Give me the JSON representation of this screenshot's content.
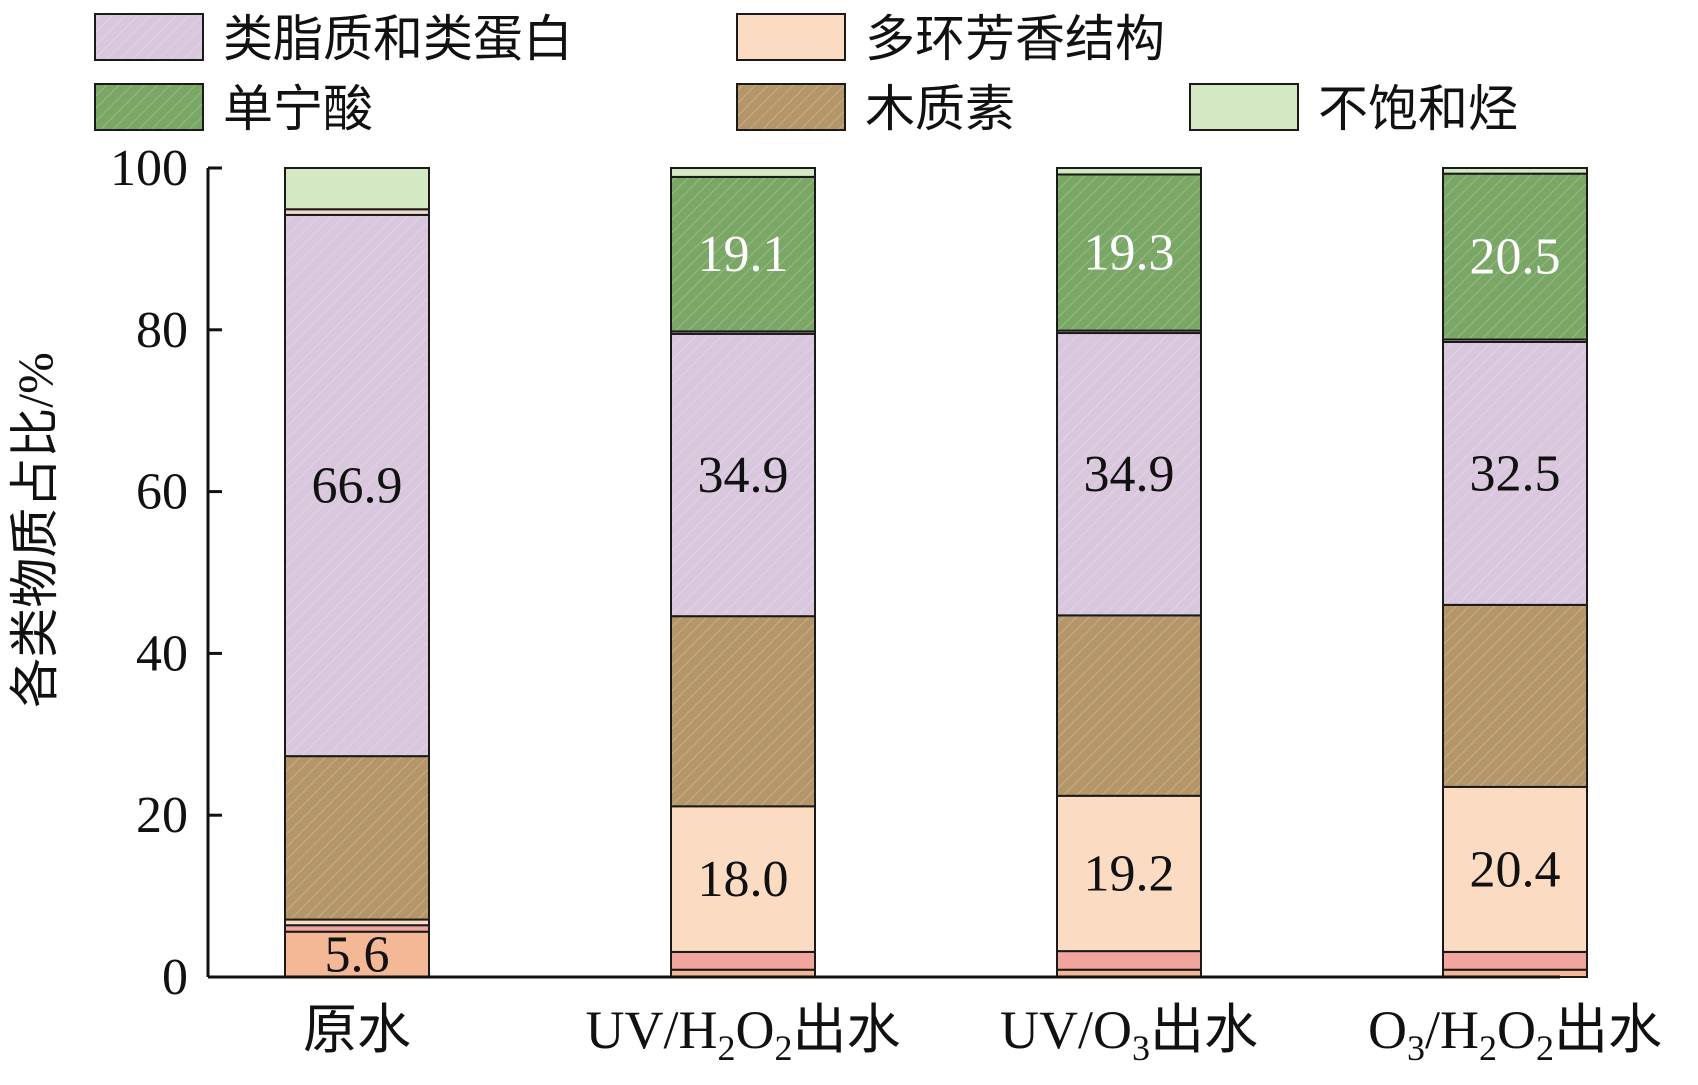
{
  "legend": {
    "items": [
      {
        "key": "lipid",
        "label": "类脂质和类蛋白",
        "color": "#d9c7dd",
        "hatch": true
      },
      {
        "key": "pah",
        "label": "多环芳香结构",
        "color": "#fbdcc3",
        "hatch": false
      },
      {
        "key": "tannin",
        "label": "单宁酸",
        "color": "#7aa765",
        "hatch": true
      },
      {
        "key": "lignin",
        "label": "木质素",
        "color": "#b59668",
        "hatch": true
      },
      {
        "key": "unsat",
        "label": "不饱和烃",
        "color": "#d3e8c3",
        "hatch": false
      }
    ]
  },
  "chart_data": {
    "type": "bar",
    "stacked": true,
    "ylabel": "各类物质占比/%",
    "ylim": [
      0,
      100
    ],
    "yticks": [
      "0",
      "20",
      "40",
      "60",
      "80",
      "100"
    ],
    "categories": [
      {
        "base": "原水",
        "sub": []
      },
      {
        "base": "出水",
        "sub": [
          [
            "UV/H",
            "n"
          ],
          [
            "2",
            "s"
          ],
          [
            "O",
            "n"
          ],
          [
            "2",
            "s"
          ]
        ]
      },
      {
        "base": "出水",
        "sub": [
          [
            "UV/O",
            "n"
          ],
          [
            "3",
            "s"
          ]
        ]
      },
      {
        "base": "出水",
        "sub": [
          [
            "O",
            "n"
          ],
          [
            "3",
            "s"
          ],
          [
            "/H",
            "n"
          ],
          [
            "2",
            "s"
          ],
          [
            "O",
            "n"
          ],
          [
            "2",
            "s"
          ]
        ]
      }
    ],
    "series": [
      {
        "key": "s1",
        "color": "#f4b896",
        "values": [
          5.6,
          0.9,
          0.9,
          0.9
        ]
      },
      {
        "key": "s2",
        "color": "#f2a49e",
        "values": [
          0.8,
          2.2,
          2.3,
          2.2
        ]
      },
      {
        "key": "pah",
        "color": "#fbdcc3",
        "values": [
          0.7,
          18.0,
          19.2,
          20.4
        ]
      },
      {
        "key": "lignin",
        "color": "#b59668",
        "values": [
          20.2,
          23.5,
          22.3,
          22.5
        ]
      },
      {
        "key": "lipid",
        "color": "#d9c7dd",
        "values": [
          66.9,
          34.9,
          34.9,
          32.5
        ]
      },
      {
        "key": "s6",
        "color": "#f2d6d0",
        "values": [
          0.7,
          0.3,
          0.3,
          0.3
        ]
      },
      {
        "key": "tannin",
        "color": "#7aa765",
        "values": [
          0.0,
          19.1,
          19.3,
          20.5
        ]
      },
      {
        "key": "unsat",
        "color": "#d3e8c3",
        "values": [
          5.1,
          1.1,
          0.8,
          0.7
        ]
      }
    ],
    "data_labels": [
      {
        "bar": 0,
        "series": "s1",
        "text": "5.6",
        "color": "#111111"
      },
      {
        "bar": 0,
        "series": "lipid",
        "text": "66.9",
        "color": "#111111"
      },
      {
        "bar": 1,
        "series": "pah",
        "text": "18.0",
        "color": "#111111"
      },
      {
        "bar": 1,
        "series": "lipid",
        "text": "34.9",
        "color": "#111111"
      },
      {
        "bar": 1,
        "series": "tannin",
        "text": "19.1",
        "color": "#ffffff"
      },
      {
        "bar": 2,
        "series": "pah",
        "text": "19.2",
        "color": "#111111"
      },
      {
        "bar": 2,
        "series": "lipid",
        "text": "34.9",
        "color": "#111111"
      },
      {
        "bar": 2,
        "series": "tannin",
        "text": "19.3",
        "color": "#ffffff"
      },
      {
        "bar": 3,
        "series": "pah",
        "text": "20.4",
        "color": "#111111"
      },
      {
        "bar": 3,
        "series": "lipid",
        "text": "32.5",
        "color": "#111111"
      },
      {
        "bar": 3,
        "series": "tannin",
        "text": "20.5",
        "color": "#ffffff"
      }
    ]
  }
}
